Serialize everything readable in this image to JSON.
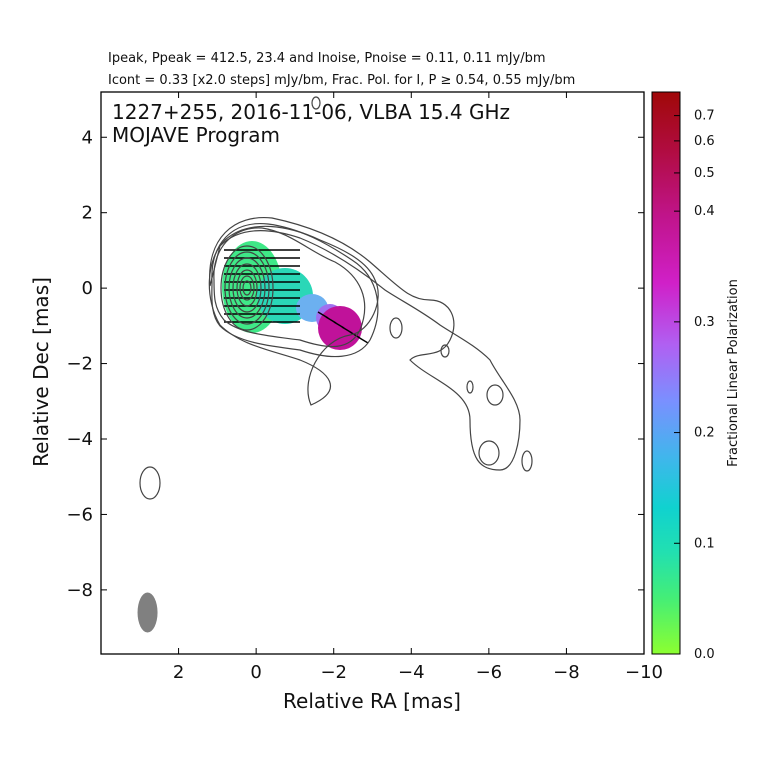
{
  "chart_data": {
    "type": "contour",
    "header": {
      "line1": "Ipeak, Ppeak = 412.5, 23.4 and Inoise, Pnoise = 0.11, 0.11 mJy/bm",
      "line2": "Icont = 0.33 [x2.0 steps] mJy/bm, Frac. Pol. for I, P ≥ 0.54, 0.55 mJy/bm"
    },
    "title_line1": "1227+255, 2016-11-06, VLBA 15.4 GHz",
    "title_line2": "MOJAVE Program",
    "xlabel": "Relative RA [mas]",
    "ylabel": "Relative Dec [mas]",
    "xlim": [
      4.0,
      -10.0
    ],
    "ylim": [
      -9.7,
      5.2
    ],
    "xticks": [
      2,
      0,
      -2,
      -4,
      -6,
      -8,
      -10
    ],
    "yticks": [
      4,
      2,
      0,
      -2,
      -4,
      -6,
      -8
    ],
    "colorbar": {
      "label": "Fractional Linear Polarization",
      "ticks": [
        "0.0",
        "0.1",
        "0.2",
        "0.3",
        "0.4",
        "0.5",
        "0.6",
        "0.7"
      ]
    },
    "beam": {
      "x": 2.8,
      "y": -8.6,
      "major_mas": 1.05,
      "minor_mas": 0.5
    },
    "colors": {
      "contour": "#444444",
      "beam": "#808080",
      "evpa": "#000000"
    }
  }
}
